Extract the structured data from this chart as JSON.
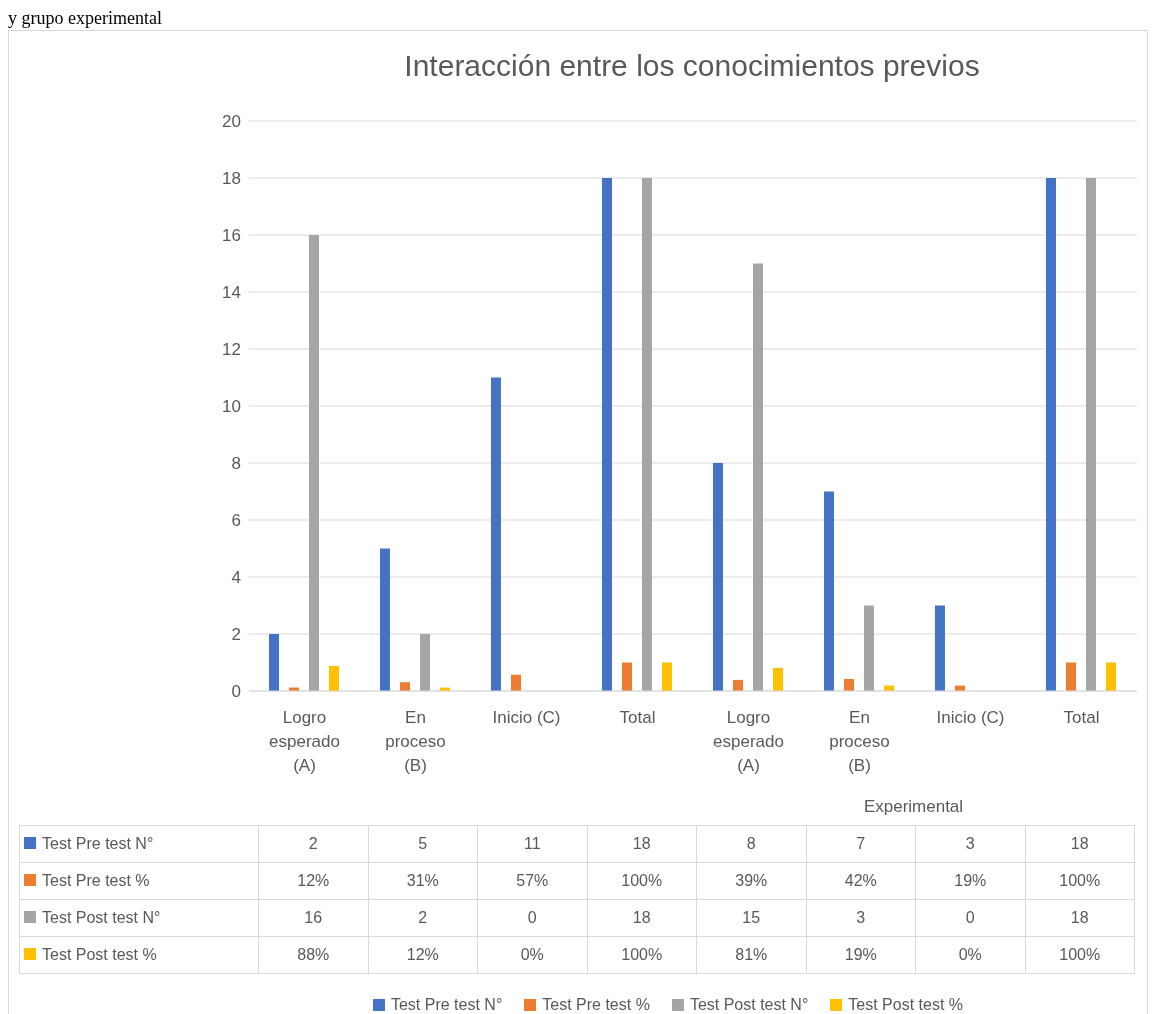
{
  "chart_data": {
    "type": "bar",
    "title": "Interacción entre los conocimientos previos",
    "categories": [
      "Logro esperado (A)",
      "En proceso (B)",
      "Inicio (C)",
      "Total",
      "Logro esperado (A)",
      "En proceso (B)",
      "Inicio (C)",
      "Total"
    ],
    "series": [
      {
        "name": "Test Pre test N°",
        "color": "#4472c4",
        "values": [
          2,
          5,
          11,
          18,
          8,
          7,
          3,
          18
        ],
        "value_labels": [
          "2",
          "5",
          "11",
          "18",
          "8",
          "7",
          "3",
          "18"
        ]
      },
      {
        "name": "Test Pre test %",
        "color": "#ed7d31",
        "values": [
          0.12,
          0.31,
          0.57,
          1,
          0.39,
          0.42,
          0.19,
          1
        ],
        "value_labels": [
          "12%",
          "31%",
          "57%",
          "100%",
          "39%",
          "42%",
          "19%",
          "100%"
        ]
      },
      {
        "name": "Test Post test N°",
        "color": "#a5a5a5",
        "values": [
          16,
          2,
          0,
          18,
          15,
          3,
          0,
          18
        ],
        "value_labels": [
          "16",
          "2",
          "0",
          "18",
          "15",
          "3",
          "0",
          "18"
        ]
      },
      {
        "name": "Test Post test %",
        "color": "#ffc000",
        "values": [
          0.88,
          0.12,
          0,
          1,
          0.81,
          0.19,
          0,
          1
        ],
        "value_labels": [
          "88%",
          "12%",
          "0%",
          "100%",
          "81%",
          "19%",
          "0%",
          "100%"
        ]
      }
    ],
    "ylim": [
      0,
      20
    ],
    "yticks": [
      0,
      2,
      4,
      6,
      8,
      10,
      12,
      14,
      16,
      18,
      20
    ],
    "grid": "y",
    "legend": "bottom",
    "annotations": [
      "y grupo experimental",
      "Experimental"
    ]
  }
}
